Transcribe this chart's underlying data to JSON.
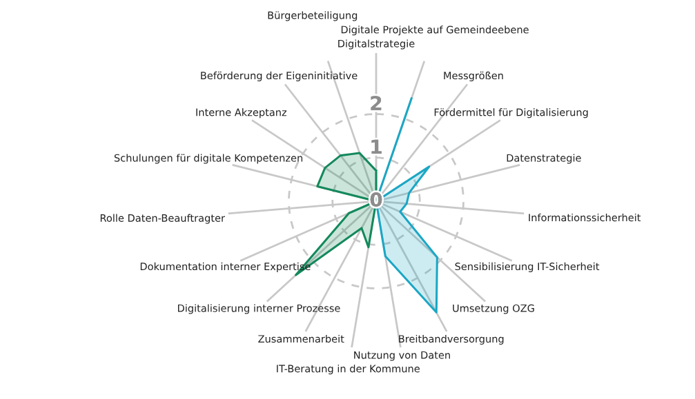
{
  "chart_data": {
    "type": "radar",
    "categories": [
      "Digitalstrategie",
      "Digitale Projekte auf Gemeindeebene",
      "Messgrößen",
      "Fördermittel für Digitalisierung",
      "Datenstrategie",
      "Informationssicherheit",
      "Sensibilisierung IT-Sicherheit",
      "Umsetzung OZG",
      "Breitbandversorgung",
      "Nutzung von Daten",
      "IT-Beratung in der Kommune",
      "Zusammenarbeit",
      "Digitalisierung interner Prozesse",
      "Dokumentation interner Expertise",
      "Rolle Daten-Beauftragter",
      "Schulungen für digitale Kompetenzen",
      "Interne Akzeptanz",
      "Beförderung der Eigeninitiative",
      "Bürgerbeteiligung"
    ],
    "series": [
      {
        "color": "#1ba7c4",
        "values": [
          0,
          2.5,
          0,
          1.45,
          0.78,
          0.7,
          0.6,
          1.9,
          2.9,
          1.28,
          0,
          0,
          0,
          0,
          0,
          0,
          0,
          0,
          0
        ]
      },
      {
        "color": "#14895c",
        "values": [
          0.7,
          0,
          0,
          0,
          0,
          0,
          0,
          0,
          0,
          0,
          1.07,
          0.7,
          2.5,
          0.68,
          0,
          1.39,
          1.4,
          1.33,
          1.17
        ]
      }
    ],
    "ylim": [
      0,
      3.4
    ],
    "yticks": [
      0,
      1,
      2
    ],
    "grid": true
  }
}
